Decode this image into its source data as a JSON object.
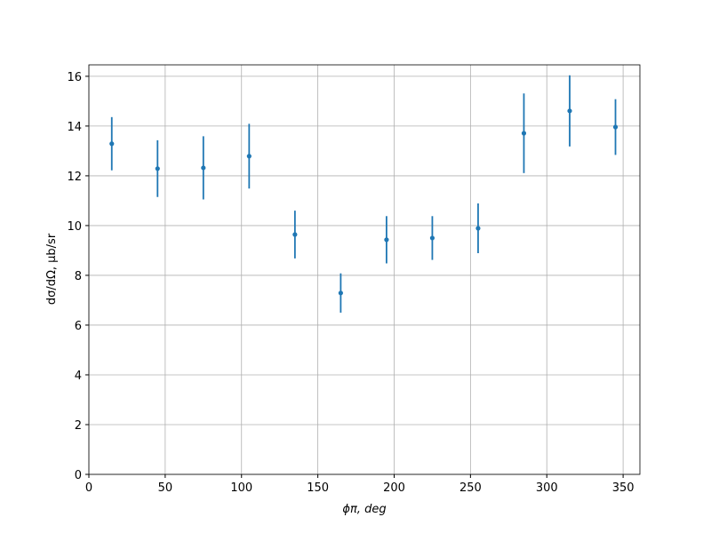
{
  "chart_data": {
    "type": "errorbar",
    "x_label": "ϕπ, deg",
    "y_label": "dσ/dΩ, μb/sr",
    "x": [
      15,
      45,
      75,
      105,
      135,
      165,
      195,
      225,
      255,
      285,
      315,
      345
    ],
    "values": [
      13.29,
      12.29,
      12.32,
      12.79,
      9.64,
      7.29,
      9.43,
      9.5,
      9.89,
      13.71,
      14.61,
      13.96
    ],
    "errors": [
      1.07,
      1.14,
      1.27,
      1.3,
      0.96,
      0.79,
      0.95,
      0.88,
      1.0,
      1.6,
      1.43,
      1.12
    ],
    "color": "#1f77b4",
    "xlim": [
      0,
      361
    ],
    "xticks": [
      0,
      50,
      100,
      150,
      200,
      250,
      300,
      350
    ],
    "ylim": [
      0,
      16.46
    ],
    "yticks": [
      0,
      2,
      4,
      6,
      8,
      10,
      12,
      14,
      16
    ],
    "grid": true
  }
}
